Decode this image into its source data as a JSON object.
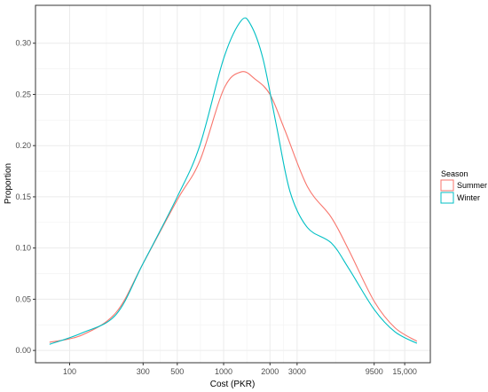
{
  "chart_data": {
    "type": "line",
    "xlabel": "Cost (PKR)",
    "ylabel": "Proportion",
    "x_scale": "log",
    "xlim": [
      60,
      22000
    ],
    "ylim": [
      -0.012,
      0.337
    ],
    "x_ticks": [
      100,
      300,
      500,
      1000,
      2000,
      3000,
      9500,
      15000
    ],
    "x_tick_labels": [
      "100",
      "300",
      "500",
      "1000",
      "2000",
      "3000",
      "9500",
      "15,000"
    ],
    "y_ticks": [
      0.0,
      0.05,
      0.1,
      0.15,
      0.2,
      0.25,
      0.3
    ],
    "y_tick_labels": [
      "0.00",
      "0.05",
      "0.10",
      "0.15",
      "0.20",
      "0.25",
      "0.30"
    ],
    "grid": true,
    "legend": {
      "title": "Season",
      "placement": "right"
    },
    "series": [
      {
        "name": "Summer",
        "color": "#F8766D",
        "x": [
          74,
          120,
          200,
          300,
          500,
          700,
          1000,
          1300,
          1600,
          2000,
          2500,
          3500,
          5000,
          6500,
          9500,
          13000,
          18000
        ],
        "y": [
          0.008,
          0.015,
          0.037,
          0.085,
          0.147,
          0.185,
          0.255,
          0.272,
          0.265,
          0.25,
          0.215,
          0.16,
          0.13,
          0.098,
          0.048,
          0.022,
          0.009
        ]
      },
      {
        "name": "Winter",
        "color": "#00BFC4",
        "x": [
          74,
          120,
          200,
          300,
          500,
          700,
          1000,
          1300,
          1500,
          1800,
          2200,
          2700,
          3500,
          5000,
          6500,
          9500,
          13000,
          18000
        ],
        "y": [
          0.006,
          0.017,
          0.035,
          0.085,
          0.15,
          0.2,
          0.285,
          0.322,
          0.318,
          0.285,
          0.22,
          0.155,
          0.12,
          0.105,
          0.08,
          0.04,
          0.018,
          0.007
        ]
      }
    ]
  }
}
